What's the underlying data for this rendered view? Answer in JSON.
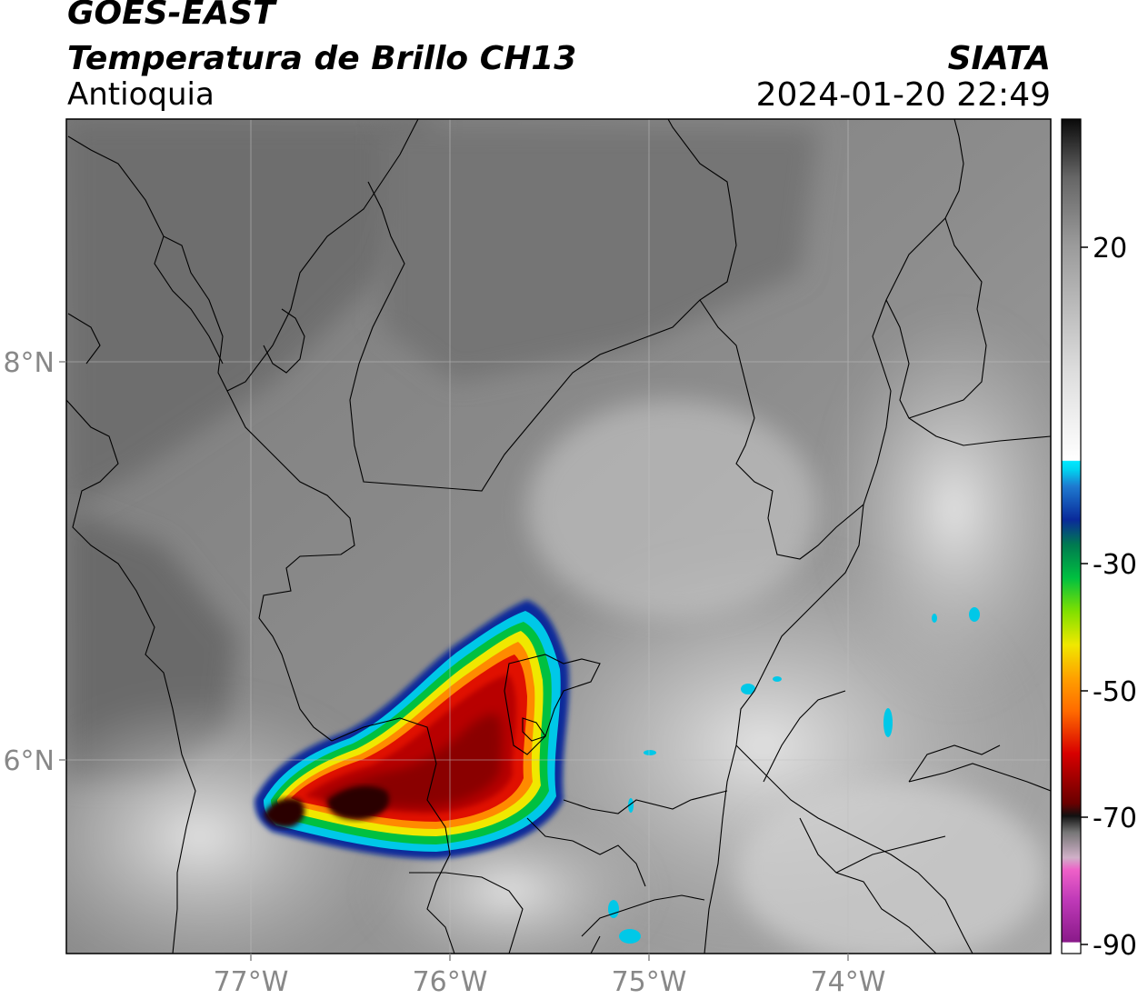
{
  "header": {
    "satellite": "GOES-EAST",
    "product": "Temperatura de Brillo CH13",
    "region": "Antioquia",
    "organization": "SIATA",
    "timestamp": "2024-01-20 22:49"
  },
  "map": {
    "x_ticks": [
      "77°W",
      "76°W",
      "75°W",
      "74°W"
    ],
    "y_ticks": [
      "8°N",
      "6°N"
    ],
    "extent": {
      "lon": [
        -77.93,
        -73.0
      ],
      "lat": [
        4.95,
        9.15
      ]
    }
  },
  "colorbar": {
    "ticks": [
      "20",
      "-30",
      "-50",
      "-70",
      "-90"
    ],
    "range": [
      -90,
      40
    ],
    "colors": {
      "warm_top": "#111111",
      "gray_mid": "#8a8a8a",
      "white": "#f5f5f5",
      "cyan": "#00d4f0",
      "blue": "#0a2a9a",
      "green": "#00c040",
      "yellow": "#f0e800",
      "orange": "#ff9a00",
      "red": "#d80000",
      "darkred": "#3a0000",
      "pink": "#ee60c8",
      "purple": "#9a1a9a"
    }
  }
}
